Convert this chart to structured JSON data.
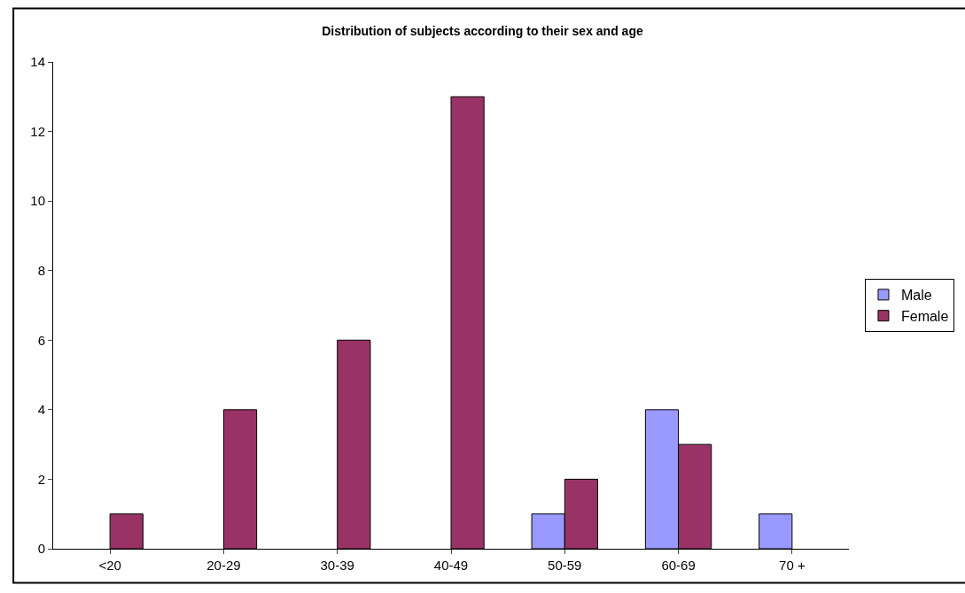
{
  "chart_data": {
    "type": "bar",
    "title": "Distribution of subjects according to their sex and age",
    "categories": [
      "<20",
      "20-29",
      "30-39",
      "40-49",
      "50-59",
      "60-69",
      "70 +"
    ],
    "series": [
      {
        "name": "Male",
        "color": "#9999ff",
        "values": [
          null,
          null,
          null,
          null,
          1,
          4,
          1
        ]
      },
      {
        "name": "Female",
        "color": "#993366",
        "values": [
          1,
          4,
          6,
          13,
          2,
          3,
          null
        ]
      }
    ],
    "ylim": [
      0,
      14
    ],
    "yticks": [
      0,
      2,
      4,
      6,
      8,
      10,
      12,
      14
    ],
    "legend": "right"
  }
}
